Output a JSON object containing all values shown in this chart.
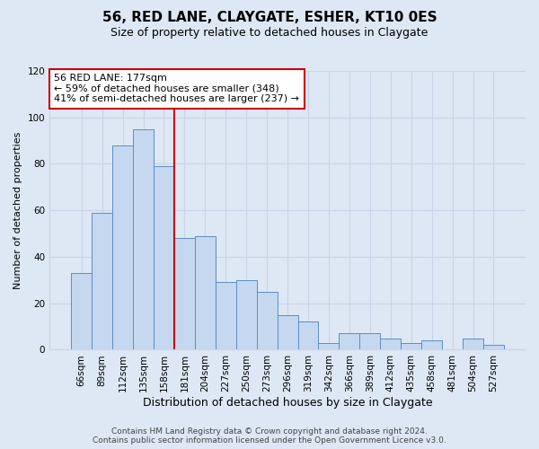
{
  "title": "56, RED LANE, CLAYGATE, ESHER, KT10 0ES",
  "subtitle": "Size of property relative to detached houses in Claygate",
  "xlabel": "Distribution of detached houses by size in Claygate",
  "ylabel": "Number of detached properties",
  "bar_labels": [
    "66sqm",
    "89sqm",
    "112sqm",
    "135sqm",
    "158sqm",
    "181sqm",
    "204sqm",
    "227sqm",
    "250sqm",
    "273sqm",
    "296sqm",
    "319sqm",
    "342sqm",
    "366sqm",
    "389sqm",
    "412sqm",
    "435sqm",
    "458sqm",
    "481sqm",
    "504sqm",
    "527sqm"
  ],
  "bar_values": [
    33,
    59,
    88,
    95,
    79,
    48,
    49,
    29,
    30,
    25,
    15,
    12,
    3,
    7,
    7,
    5,
    3,
    4,
    0,
    5,
    2
  ],
  "bar_color": "#c5d8ef",
  "bar_edge_color": "#5b8ec4",
  "vline_x_index": 5,
  "vline_color": "#cc0000",
  "annotation_text": "56 RED LANE: 177sqm\n← 59% of detached houses are smaller (348)\n41% of semi-detached houses are larger (237) →",
  "annotation_box_edge_color": "#cc0000",
  "annotation_box_face_color": "#ffffff",
  "ylim": [
    0,
    120
  ],
  "yticks": [
    0,
    20,
    40,
    60,
    80,
    100,
    120
  ],
  "grid_color": "#c8d4e8",
  "background_color": "#dde8f4",
  "plot_bg_color": "#dde8f4",
  "footer_line1": "Contains HM Land Registry data © Crown copyright and database right 2024.",
  "footer_line2": "Contains public sector information licensed under the Open Government Licence v3.0.",
  "title_fontsize": 11,
  "subtitle_fontsize": 9,
  "xlabel_fontsize": 9,
  "ylabel_fontsize": 8,
  "tick_fontsize": 7.5,
  "footer_fontsize": 6.5,
  "annotation_fontsize": 8
}
